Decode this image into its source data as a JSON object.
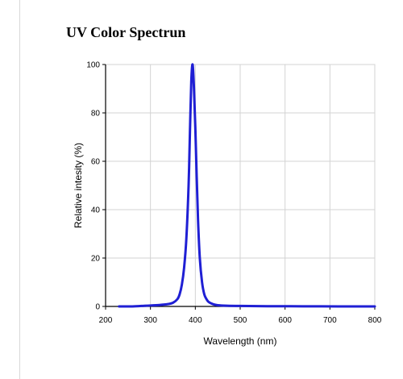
{
  "chart_data": {
    "type": "line",
    "title": "UV Color Spectrun",
    "xlabel": "Wavelength (nm)",
    "ylabel": "Relative intesity (%)",
    "xlim": [
      200,
      800
    ],
    "ylim": [
      0,
      100
    ],
    "x_ticks": [
      200,
      300,
      400,
      500,
      600,
      700,
      800
    ],
    "y_ticks": [
      0,
      20,
      40,
      60,
      80,
      100
    ],
    "grid": true,
    "series_color": "#1f1fd4",
    "series": [
      {
        "x": [
          230,
          260,
          290,
          320,
          340,
          350,
          360,
          365,
          370,
          375,
          380,
          385,
          388,
          391,
          394,
          397,
          400,
          403,
          406,
          410,
          415,
          420,
          425,
          430,
          440,
          450,
          470,
          500,
          560,
          640,
          720,
          800
        ],
        "y": [
          0,
          0,
          0.3,
          0.6,
          1.0,
          1.5,
          3,
          5,
          9,
          16,
          28,
          50,
          72,
          93,
          100,
          90,
          74,
          54,
          36,
          20,
          10,
          5,
          3,
          1.8,
          0.9,
          0.5,
          0.3,
          0.2,
          0.1,
          0.05,
          0,
          0
        ]
      }
    ]
  }
}
